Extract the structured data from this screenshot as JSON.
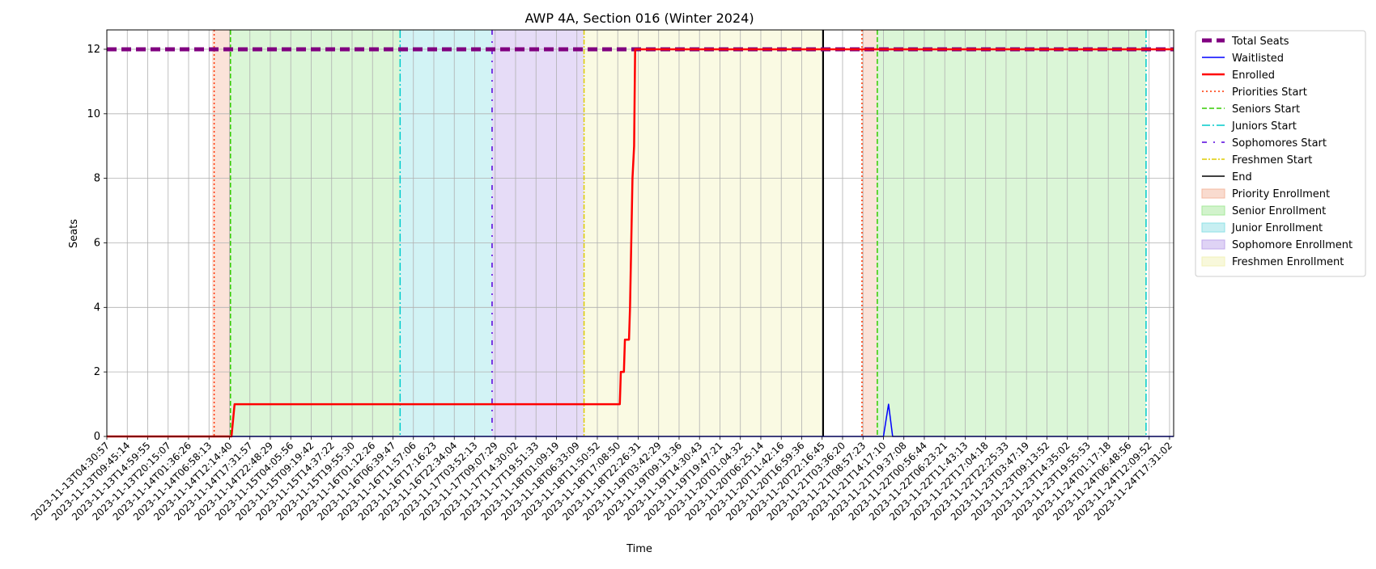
{
  "chart_data": {
    "type": "line",
    "title": "AWP 4A, Section 016 (Winter 2024)",
    "xlabel": "Time",
    "ylabel": "Seats",
    "ylim": [
      0,
      12.6
    ],
    "yticks": [
      0,
      2,
      4,
      6,
      8,
      10,
      12
    ],
    "grid": true,
    "legend_position": "outside-right",
    "x_categories": [
      "2023-11-13T04:30:57",
      "2023-11-13T09:45:14",
      "2023-11-13T14:59:55",
      "2023-11-13T20:15:07",
      "2023-11-14T01:36:26",
      "2023-11-14T06:58:13",
      "2023-11-14T12:14:40",
      "2023-11-14T17:31:57",
      "2023-11-14T22:48:29",
      "2023-11-15T04:05:56",
      "2023-11-15T09:19:42",
      "2023-11-15T14:37:22",
      "2023-11-15T19:55:30",
      "2023-11-16T01:12:26",
      "2023-11-16T06:39:47",
      "2023-11-16T11:57:06",
      "2023-11-16T17:16:23",
      "2023-11-16T22:34:04",
      "2023-11-17T03:52:13",
      "2023-11-17T09:07:29",
      "2023-11-17T14:30:02",
      "2023-11-17T19:51:33",
      "2023-11-18T01:09:19",
      "2023-11-18T06:33:09",
      "2023-11-18T11:50:52",
      "2023-11-18T17:08:50",
      "2023-11-18T22:26:31",
      "2023-11-19T03:42:29",
      "2023-11-19T09:13:36",
      "2023-11-19T14:30:43",
      "2023-11-19T19:47:21",
      "2023-11-20T01:04:32",
      "2023-11-20T06:25:14",
      "2023-11-20T11:42:16",
      "2023-11-20T16:59:36",
      "2023-11-20T22:16:45",
      "2023-11-21T03:36:20",
      "2023-11-21T08:57:23",
      "2023-11-21T14:17:10",
      "2023-11-21T19:37:08",
      "2023-11-22T00:56:44",
      "2023-11-22T06:23:21",
      "2023-11-22T11:43:13",
      "2023-11-22T17:04:18",
      "2023-11-22T22:25:33",
      "2023-11-23T03:47:19",
      "2023-11-23T09:13:52",
      "2023-11-23T14:35:02",
      "2023-11-23T19:55:53",
      "2023-11-24T01:17:18",
      "2023-11-24T06:48:56",
      "2023-11-24T12:09:52",
      "2023-11-24T17:31:02"
    ],
    "x_range": [
      0,
      52.2
    ],
    "series": [
      {
        "name": "Total Seats",
        "color": "#800080",
        "style": "dashed-thick",
        "points": [
          [
            0,
            12
          ],
          [
            52.2,
            12
          ]
        ]
      },
      {
        "name": "Waitlisted",
        "color": "#0000ff",
        "style": "solid-thin",
        "points": [
          [
            0,
            0
          ],
          [
            38.0,
            0
          ],
          [
            38.25,
            1
          ],
          [
            38.45,
            0
          ],
          [
            52.2,
            0
          ]
        ]
      },
      {
        "name": "Enrolled",
        "color": "#ff0000",
        "style": "solid-thick",
        "points": [
          [
            0,
            0
          ],
          [
            6.1,
            0
          ],
          [
            6.25,
            1
          ],
          [
            25.1,
            1
          ],
          [
            25.15,
            2
          ],
          [
            25.3,
            2
          ],
          [
            25.35,
            3
          ],
          [
            25.55,
            3
          ],
          [
            25.6,
            4
          ],
          [
            25.72,
            8
          ],
          [
            25.8,
            9
          ],
          [
            25.85,
            12
          ],
          [
            52.2,
            12
          ]
        ]
      }
    ],
    "phase_markers": [
      {
        "name": "Priorities Start",
        "x": 5.25,
        "color": "#ff3300",
        "style": "dotted"
      },
      {
        "name": "Seniors Start",
        "x": 6.05,
        "color": "#33cc00",
        "style": "dashed"
      },
      {
        "name": "Juniors Start",
        "x": 14.35,
        "color": "#00cccc",
        "style": "dashdot"
      },
      {
        "name": "Sophomores Start",
        "x": 18.85,
        "color": "#5500dd",
        "style": "loose-dashdot"
      },
      {
        "name": "Freshmen Start",
        "x": 23.35,
        "color": "#ddcc00",
        "style": "dashdot-small"
      },
      {
        "name": "End",
        "x": 35.05,
        "color": "#000000",
        "style": "solid"
      },
      {
        "name": "Priorities Start",
        "x": 36.95,
        "color": "#ff3300",
        "style": "dotted",
        "legend": false
      },
      {
        "name": "Seniors Start",
        "x": 37.7,
        "color": "#33cc00",
        "style": "dashed",
        "legend": false
      },
      {
        "name": "Juniors Start",
        "x": 50.85,
        "color": "#00cccc",
        "style": "dashdot",
        "legend": false
      }
    ],
    "phase_bands": [
      {
        "name": "Priority Enrollment",
        "from": 5.15,
        "to": 6.05,
        "color": "#f4b8a0"
      },
      {
        "name": "Senior Enrollment",
        "from": 6.05,
        "to": 14.35,
        "color": "#a6e89a"
      },
      {
        "name": "Junior Enrollment",
        "from": 14.35,
        "to": 18.85,
        "color": "#8fe0e6"
      },
      {
        "name": "Sophomore Enrollment",
        "from": 18.85,
        "to": 23.35,
        "color": "#c0a8ec"
      },
      {
        "name": "Freshmen Enrollment",
        "from": 23.35,
        "to": 35.05,
        "color": "#f2f2b8"
      },
      {
        "name": "Priority Enrollment",
        "from": 36.95,
        "to": 37.7,
        "color": "#f4b8a0",
        "legend": false
      },
      {
        "name": "Senior Enrollment",
        "from": 37.7,
        "to": 50.85,
        "color": "#a6e89a",
        "legend": false
      }
    ],
    "legend": [
      {
        "label": "Total Seats",
        "kind": "line",
        "color": "#800080",
        "style": "dashed-thick"
      },
      {
        "label": "Waitlisted",
        "kind": "line",
        "color": "#0000ff",
        "style": "solid-thin"
      },
      {
        "label": "Enrolled",
        "kind": "line",
        "color": "#ff0000",
        "style": "solid-thick"
      },
      {
        "label": "Priorities Start",
        "kind": "line",
        "color": "#ff3300",
        "style": "dotted"
      },
      {
        "label": "Seniors Start",
        "kind": "line",
        "color": "#33cc00",
        "style": "dashed"
      },
      {
        "label": "Juniors Start",
        "kind": "line",
        "color": "#00cccc",
        "style": "dashdot"
      },
      {
        "label": "Sophomores Start",
        "kind": "line",
        "color": "#5500dd",
        "style": "loose-dashdot"
      },
      {
        "label": "Freshmen Start",
        "kind": "line",
        "color": "#ddcc00",
        "style": "dashdot-small"
      },
      {
        "label": "End",
        "kind": "line",
        "color": "#000000",
        "style": "solid"
      },
      {
        "label": "Priority Enrollment",
        "kind": "patch",
        "color": "#f4b8a0"
      },
      {
        "label": "Senior Enrollment",
        "kind": "patch",
        "color": "#a6e89a"
      },
      {
        "label": "Junior Enrollment",
        "kind": "patch",
        "color": "#8fe0e6"
      },
      {
        "label": "Sophomore Enrollment",
        "kind": "patch",
        "color": "#c0a8ec"
      },
      {
        "label": "Freshmen Enrollment",
        "kind": "patch",
        "color": "#f2f2b8"
      }
    ]
  }
}
